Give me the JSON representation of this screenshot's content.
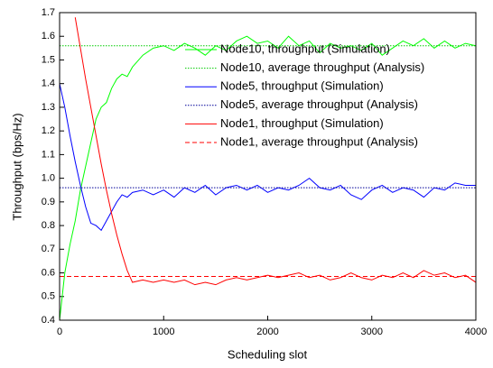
{
  "chart_data": {
    "type": "line",
    "x_label": "Scheduling slot",
    "y_label": "Throughput (bps/Hz)",
    "xlim": [
      0,
      4000
    ],
    "ylim": [
      0.4,
      1.7
    ],
    "xticks": [
      0,
      1000,
      2000,
      3000,
      4000
    ],
    "yticks": [
      0.4,
      0.5,
      0.6,
      0.7,
      0.8,
      0.9,
      {
        "value": 1,
        "label": "1.0"
      },
      1.1,
      1.2,
      1.3,
      1.4,
      1.5,
      1.6,
      1.7
    ],
    "x": [
      0,
      50,
      100,
      150,
      200,
      250,
      300,
      350,
      400,
      450,
      500,
      550,
      600,
      650,
      700,
      800,
      900,
      1000,
      1100,
      1200,
      1300,
      1400,
      1500,
      1600,
      1700,
      1800,
      1900,
      2000,
      2100,
      2200,
      2300,
      2400,
      2500,
      2600,
      2700,
      2800,
      2900,
      3000,
      3100,
      3200,
      3300,
      3400,
      3500,
      3600,
      3700,
      3800,
      3900,
      4000
    ],
    "series": [
      {
        "name": "Node10, throughput (Simulation)",
        "color": "#00ff00",
        "style": "solid",
        "values": [
          0.4,
          0.6,
          0.72,
          0.82,
          0.95,
          1.05,
          1.15,
          1.25,
          1.3,
          1.32,
          1.38,
          1.42,
          1.44,
          1.43,
          1.47,
          1.52,
          1.55,
          1.56,
          1.54,
          1.57,
          1.55,
          1.52,
          1.56,
          1.54,
          1.58,
          1.6,
          1.57,
          1.58,
          1.55,
          1.6,
          1.56,
          1.58,
          1.53,
          1.57,
          1.55,
          1.56,
          1.54,
          1.57,
          1.52,
          1.55,
          1.58,
          1.56,
          1.59,
          1.55,
          1.58,
          1.55,
          1.57,
          1.56
        ]
      },
      {
        "name": "Node10, average throughput (Analysis)",
        "color": "#00cc00",
        "style": "dotted",
        "x": [
          0,
          4000
        ],
        "values": [
          1.56,
          1.56
        ]
      },
      {
        "name": "Node5, throughput (Simulation)",
        "color": "#0000ff",
        "style": "solid",
        "values": [
          1.4,
          1.3,
          1.18,
          1.07,
          0.97,
          0.88,
          0.81,
          0.8,
          0.78,
          0.82,
          0.86,
          0.9,
          0.93,
          0.92,
          0.94,
          0.95,
          0.93,
          0.95,
          0.92,
          0.96,
          0.94,
          0.97,
          0.93,
          0.96,
          0.97,
          0.95,
          0.97,
          0.94,
          0.96,
          0.95,
          0.97,
          1.0,
          0.96,
          0.95,
          0.97,
          0.93,
          0.91,
          0.95,
          0.97,
          0.94,
          0.96,
          0.95,
          0.92,
          0.96,
          0.95,
          0.98,
          0.97,
          0.97
        ]
      },
      {
        "name": "Node5, average throughput (Analysis)",
        "color": "#000099",
        "style": "dotted",
        "x": [
          0,
          4000
        ],
        "values": [
          0.96,
          0.96
        ]
      },
      {
        "name": "Node1, throughput (Simulation)",
        "color": "#ff0000",
        "style": "solid",
        "values": [
          null,
          null,
          null,
          1.68,
          1.55,
          1.42,
          1.3,
          1.18,
          1.06,
          0.95,
          0.85,
          0.76,
          0.68,
          0.61,
          0.56,
          0.57,
          0.56,
          0.57,
          0.56,
          0.57,
          0.55,
          0.56,
          0.55,
          0.57,
          0.58,
          0.57,
          0.58,
          0.59,
          0.58,
          0.59,
          0.6,
          0.58,
          0.59,
          0.57,
          0.58,
          0.6,
          0.58,
          0.57,
          0.59,
          0.58,
          0.6,
          0.58,
          0.61,
          0.59,
          0.6,
          0.58,
          0.59,
          0.56
        ]
      },
      {
        "name": "Node1, average throughput (Analysis)",
        "color": "#ff0000",
        "style": "dashed",
        "x": [
          0,
          4000
        ],
        "values": [
          0.585,
          0.585
        ]
      }
    ]
  }
}
